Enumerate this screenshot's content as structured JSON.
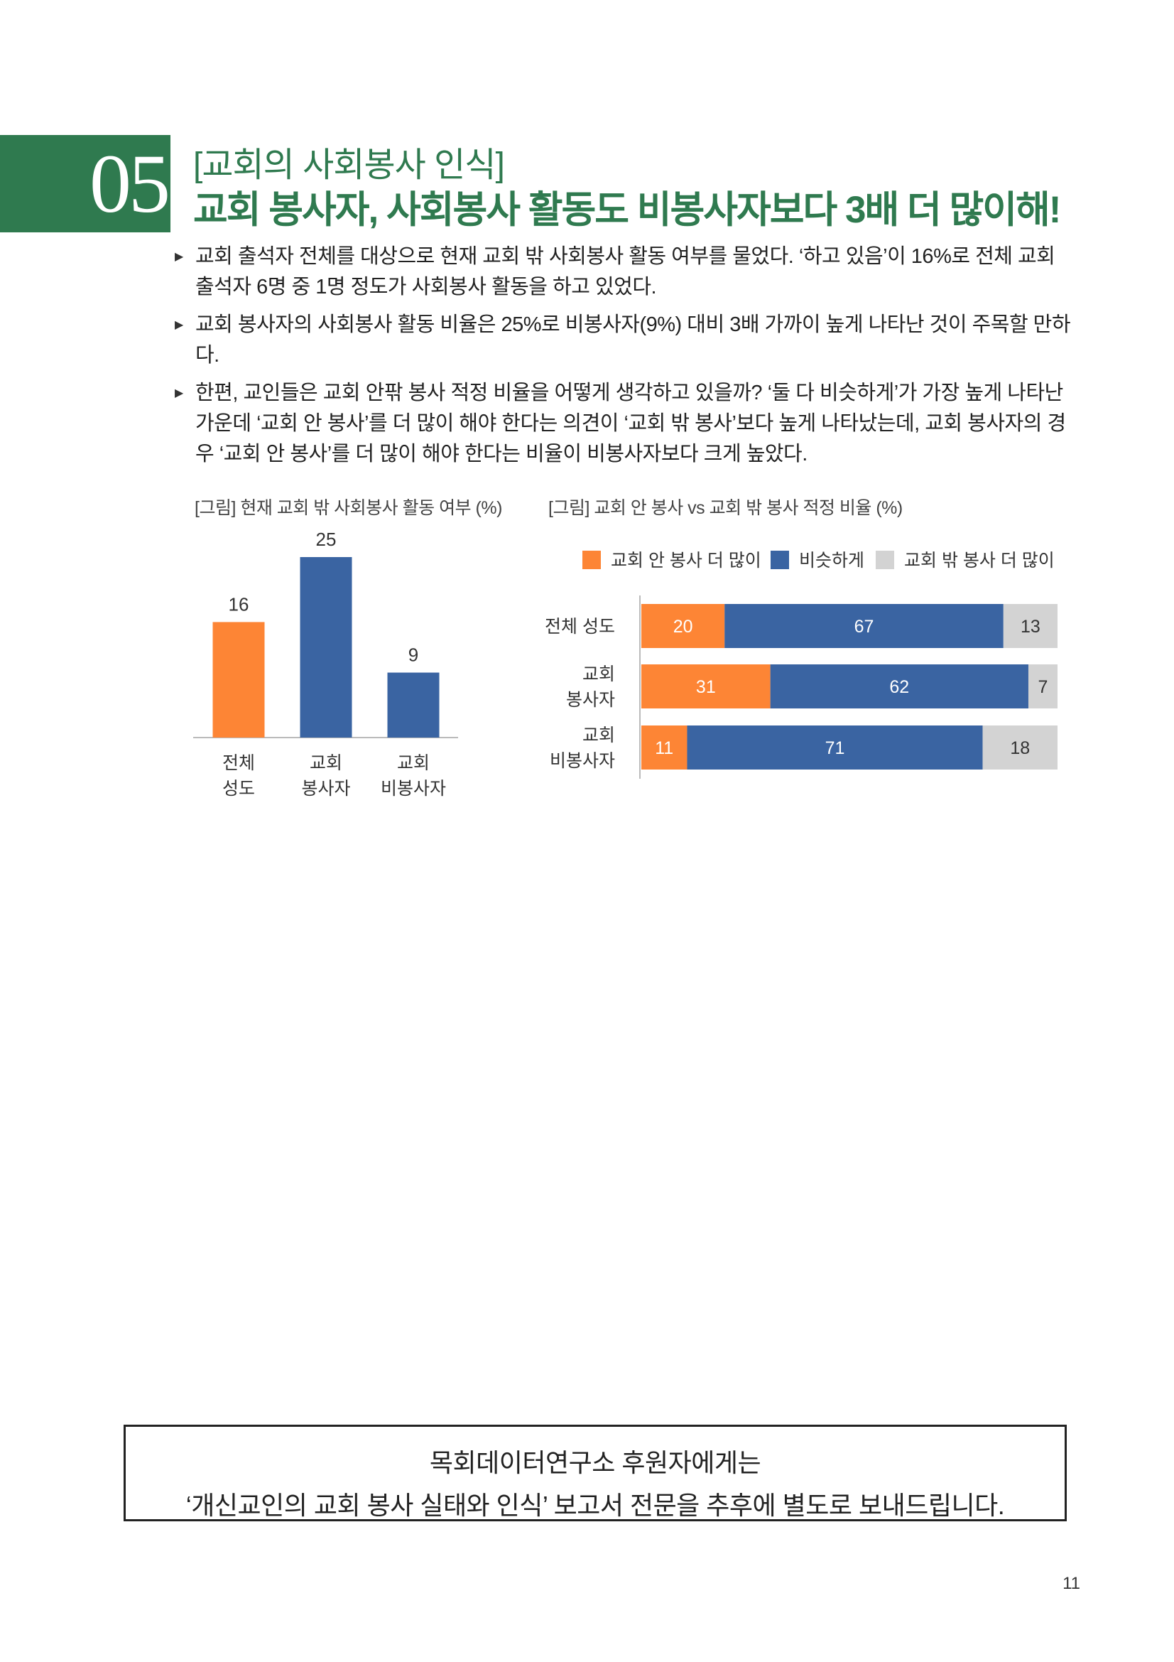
{
  "section": {
    "number": "05",
    "subtitle": "[교회의 사회봉사 인식]",
    "headline": "교회 봉사자, 사회봉사 활동도 비봉사자보다 3배 더 많이해!"
  },
  "bullets": [
    "교회 출석자 전체를 대상으로 현재 교회 밖 사회봉사 활동 여부를 물었다. ‘하고 있음’이 16%로 전체 교회 출석자 6명 중 1명 정도가 사회봉사 활동을 하고 있었다.",
    "교회 봉사자의 사회봉사 활동 비율은 25%로 비봉사자(9%) 대비 3배 가까이 높게 나타난 것이 주목할 만하다.",
    "한편, 교인들은 교회 안팎 봉사 적정 비율을 어떻게 생각하고 있을까? ‘둘 다 비슷하게’가 가장 높게 나타난 가운데 ‘교회 안 봉사’를 더 많이 해야 한다는 의견이 ‘교회 밖 봉사’보다 높게 나타났는데, 교회 봉사자의 경우 ‘교회 안 봉사’를 더 많이 해야 한다는 비율이 비봉사자보다 크게 높았다."
  ],
  "bullet_marker": "▶",
  "chart_data": [
    {
      "type": "bar",
      "title": "[그림] 현재 교회 밖 사회봉사 활동 여부 (%)",
      "categories": [
        [
          "전체",
          "성도"
        ],
        [
          "교회",
          "봉사자"
        ],
        [
          "교회",
          "비봉사자"
        ]
      ],
      "values": [
        16,
        25,
        9
      ],
      "colors": [
        "#fd8535",
        "#3a64a2",
        "#3a64a2"
      ],
      "ylim": [
        0,
        25
      ],
      "grid": false
    },
    {
      "type": "bar",
      "orientation": "horizontal",
      "stacked": true,
      "title": "[그림] 교회 안 봉사 vs 교회 밖 봉사 적정 비율 (%)",
      "categories": [
        [
          "전체 성도"
        ],
        [
          "교회",
          "봉사자"
        ],
        [
          "교회",
          "비봉사자"
        ]
      ],
      "series": [
        {
          "name": "교회 안 봉사 더 많이",
          "values": [
            20,
            31,
            11
          ],
          "color": "#fd8535"
        },
        {
          "name": "비슷하게",
          "values": [
            67,
            62,
            71
          ],
          "color": "#3a64a2"
        },
        {
          "name": "교회 밖 봉사 더 많이",
          "values": [
            13,
            7,
            18
          ],
          "color": "#d3d3d3"
        }
      ],
      "xlim": [
        0,
        100
      ],
      "legend_position": "top",
      "grid": false
    }
  ],
  "footer": {
    "line1": "목회데이터연구소 후원자에게는",
    "line2": "‘개신교인의 교회 봉사 실태와 인식’ 보고서 전문을 추후에 별도로 보내드립니다."
  },
  "page_number": "11"
}
